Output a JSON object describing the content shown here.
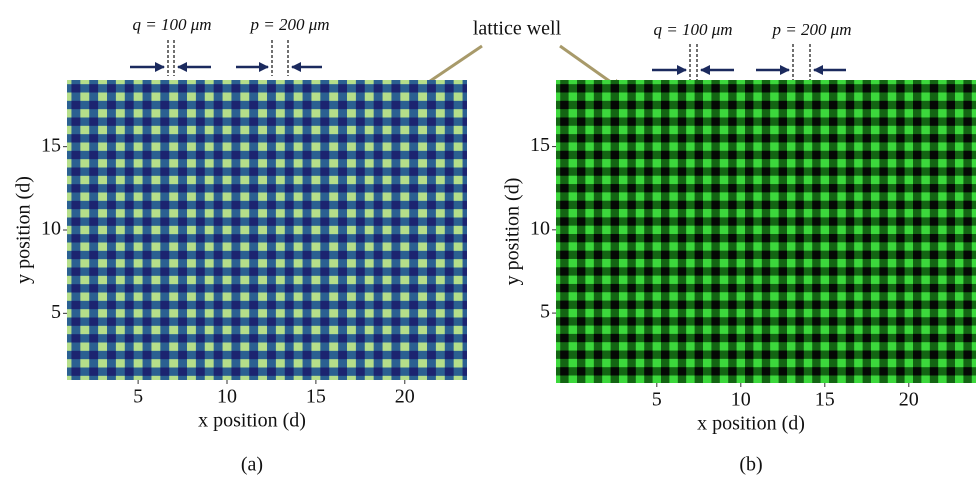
{
  "annotation": "lattice well",
  "chart_data": [
    {
      "type": "lattice",
      "panel_label": "(a)",
      "xlabel": "x position (d)",
      "ylabel": "y position (d)",
      "xlim": [
        1,
        23.5
      ],
      "ylim": [
        1,
        19
      ],
      "xticks": [
        5,
        10,
        15,
        20
      ],
      "yticks": [
        5,
        10,
        15
      ],
      "annotations": [
        "q = 100 μm",
        "p = 200 μm"
      ],
      "colors": {
        "background": "#1c2470",
        "stripe": "#2f6f9a",
        "well": "#b5de8a"
      }
    },
    {
      "type": "lattice",
      "panel_label": "(b)",
      "xlabel": "x position (d)",
      "ylabel": "y position (d)",
      "xlim": [
        -1,
        24
      ],
      "ylim": [
        0.8,
        19
      ],
      "xticks": [
        5,
        10,
        15,
        20
      ],
      "yticks": [
        5,
        10,
        15
      ],
      "annotations": [
        "q = 100 μm",
        "p = 200 μm"
      ],
      "colors": {
        "background": "#050805",
        "stripe": "#167d16",
        "well": "#3cd83c"
      }
    }
  ]
}
